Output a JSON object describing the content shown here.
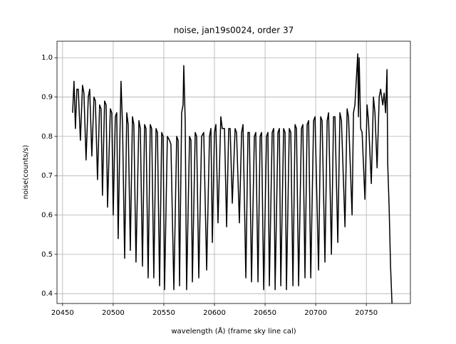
{
  "chart_data": {
    "type": "line",
    "title": "noise, jan19s0024, order 37",
    "x_label": "wavelength (Å) (frame sky line cal)",
    "y_label": "noise(counts/s)",
    "color": "#000000",
    "grid": true,
    "xlim": [
      20444.5,
      20793.5
    ],
    "ylim": [
      0.375,
      1.042
    ],
    "xticks": [
      20450,
      20500,
      20550,
      20600,
      20650,
      20700,
      20750
    ],
    "yticks": [
      0.4,
      0.5,
      0.6,
      0.7,
      0.8,
      0.9,
      {
        "value": 1,
        "label": "1.0"
      }
    ],
    "x": [
      20459.9,
      20461.3,
      20462.7,
      20464.1,
      20465.5,
      20467.6,
      20469.7,
      20471.1,
      20473.2,
      20475.4,
      20476.8,
      20478.9,
      20481.0,
      20482.4,
      20484.5,
      20486.6,
      20488.0,
      20489.4,
      20491.5,
      20493.0,
      20494.4,
      20497.2,
      20498.6,
      20500.0,
      20502.1,
      20503.5,
      20504.9,
      20507.0,
      20507.7,
      20509.2,
      20511.3,
      20513.4,
      20514.8,
      20516.9,
      20519.0,
      20520.4,
      20522.5,
      20525.4,
      20526.8,
      20528.9,
      20531.0,
      20532.4,
      20534.5,
      20536.6,
      20538.0,
      20540.1,
      20542.3,
      20543.7,
      20545.8,
      20547.9,
      20549.3,
      20550.7,
      20553.5,
      20555.6,
      20557.0,
      20559.9,
      20562.7,
      20564.1,
      20565.5,
      20567.6,
      20569.0,
      20569.7,
      20571.1,
      20572.5,
      20575.4,
      20576.8,
      20578.2,
      20581.0,
      20582.4,
      20584.5,
      20587.3,
      20589.4,
      20592.3,
      20595.1,
      20596.5,
      20597.9,
      20600.0,
      20601.4,
      20603.5,
      20606.3,
      20607.7,
      20609.9,
      20612.0,
      20614.1,
      20615.5,
      20617.6,
      20620.4,
      20621.8,
      20624.6,
      20626.8,
      20628.2,
      20631.0,
      20633.1,
      20634.5,
      20636.6,
      20639.4,
      20640.8,
      20643.0,
      20645.1,
      20646.5,
      20648.6,
      20651.4,
      20652.8,
      20654.2,
      20657.0,
      20658.5,
      20659.9,
      20662.7,
      20664.1,
      20665.5,
      20668.3,
      20669.7,
      20671.1,
      20673.9,
      20675.4,
      20677.5,
      20679.6,
      20681.0,
      20683.1,
      20685.9,
      20687.3,
      20689.4,
      20691.5,
      20693.0,
      20695.1,
      20697.9,
      20699.3,
      20702.8,
      20704.9,
      20706.3,
      20709.1,
      20711.3,
      20712.7,
      20715.5,
      20717.6,
      20719.0,
      20721.8,
      20723.9,
      20725.4,
      20728.9,
      20731.0,
      20732.4,
      20735.9,
      20737.3,
      20738.7,
      20741.5,
      20742.2,
      20742.9,
      20744.4,
      20745.8,
      20748.6,
      20750.7,
      20752.1,
      20754.9,
      20757.0,
      20758.5,
      20760.6,
      20762.7,
      20764.1,
      20766.2,
      20767.6,
      20769.0,
      20770.4,
      20771.1,
      20772.5,
      20773.9,
      20775.4
    ],
    "y": [
      0.86,
      0.94,
      0.82,
      0.92,
      0.92,
      0.79,
      0.93,
      0.91,
      0.74,
      0.9,
      0.92,
      0.75,
      0.9,
      0.89,
      0.69,
      0.88,
      0.87,
      0.65,
      0.89,
      0.88,
      0.62,
      0.87,
      0.86,
      0.6,
      0.85,
      0.86,
      0.54,
      0.85,
      0.94,
      0.83,
      0.49,
      0.86,
      0.83,
      0.51,
      0.85,
      0.83,
      0.48,
      0.84,
      0.82,
      0.47,
      0.83,
      0.82,
      0.44,
      0.83,
      0.82,
      0.44,
      0.82,
      0.81,
      0.42,
      0.81,
      0.8,
      0.41,
      0.8,
      0.79,
      0.78,
      0.41,
      0.8,
      0.79,
      0.42,
      0.86,
      0.88,
      0.98,
      0.84,
      0.41,
      0.8,
      0.79,
      0.43,
      0.81,
      0.8,
      0.44,
      0.8,
      0.81,
      0.46,
      0.8,
      0.82,
      0.53,
      0.81,
      0.83,
      0.58,
      0.85,
      0.82,
      0.82,
      0.57,
      0.82,
      0.82,
      0.63,
      0.82,
      0.81,
      0.58,
      0.81,
      0.83,
      0.44,
      0.81,
      0.81,
      0.43,
      0.8,
      0.81,
      0.43,
      0.8,
      0.81,
      0.41,
      0.8,
      0.81,
      0.42,
      0.81,
      0.82,
      0.41,
      0.81,
      0.82,
      0.42,
      0.82,
      0.81,
      0.41,
      0.82,
      0.81,
      0.42,
      0.83,
      0.82,
      0.42,
      0.82,
      0.83,
      0.44,
      0.83,
      0.84,
      0.44,
      0.84,
      0.85,
      0.46,
      0.85,
      0.84,
      0.48,
      0.84,
      0.86,
      0.5,
      0.85,
      0.85,
      0.53,
      0.86,
      0.84,
      0.57,
      0.87,
      0.85,
      0.6,
      0.86,
      0.88,
      1.01,
      0.85,
      1.0,
      0.82,
      0.81,
      0.64,
      0.88,
      0.84,
      0.68,
      0.9,
      0.86,
      0.72,
      0.9,
      0.92,
      0.88,
      0.91,
      0.86,
      0.97,
      0.73,
      0.62,
      0.47,
      0.37
    ]
  }
}
